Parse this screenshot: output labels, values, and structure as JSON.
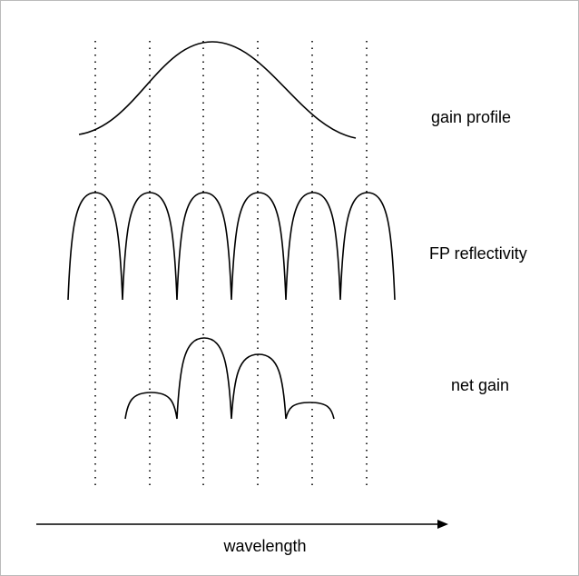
{
  "labels": {
    "gain_profile": "gain profile",
    "fp_reflectivity": "FP reflectivity",
    "net_gain": "net gain"
  },
  "axis_label": "wavelength"
}
